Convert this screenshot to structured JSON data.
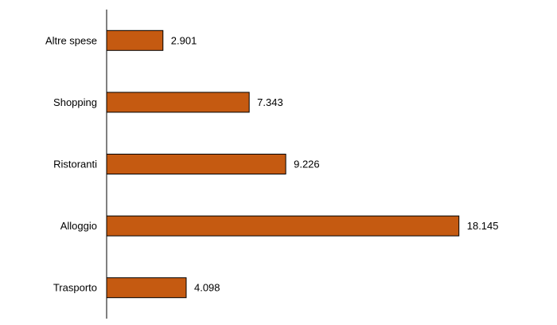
{
  "chart_data": {
    "type": "bar",
    "orientation": "horizontal",
    "categories": [
      "Altre spese",
      "Shopping",
      "Ristoranti",
      "Alloggio",
      "Trasporto"
    ],
    "values": [
      2.901,
      7.343,
      9.226,
      18.145,
      4.098
    ],
    "value_labels": [
      "2.901",
      "7.343",
      "9.226",
      "18.145",
      "4.098"
    ],
    "bar_color": "#C55A11",
    "bar_edge_color": "#000000",
    "xlim": [
      0,
      20
    ],
    "grid": false,
    "title": "",
    "xlabel": "",
    "ylabel": ""
  }
}
